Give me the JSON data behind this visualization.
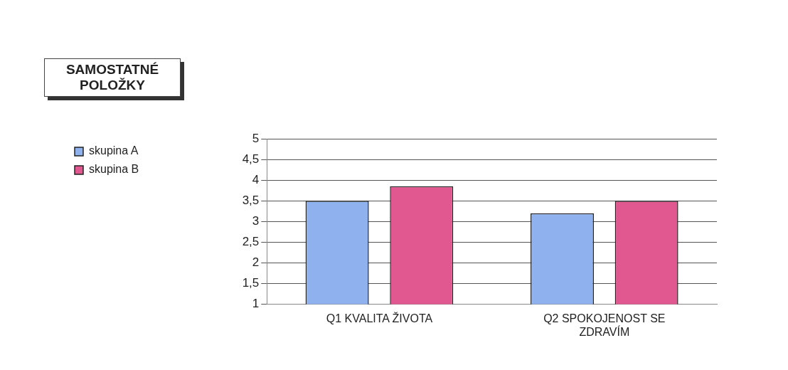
{
  "chart_data": {
    "type": "bar",
    "title": "SAMOSTATNÉ POLOŽKY",
    "categories": [
      "Q1 KVALITA ŽIVOTA",
      "Q2 SPOKOJENOST SE ZDRAVÍM"
    ],
    "series": [
      {
        "name": "skupina A",
        "color": "#8fb1ee",
        "values": [
          3.5,
          3.2
        ]
      },
      {
        "name": "skupina B",
        "color": "#e0588f",
        "values": [
          3.85,
          3.5
        ]
      }
    ],
    "ylim": [
      1,
      5
    ],
    "yticks": [
      1,
      {
        "value": 1.5,
        "label": "1,5"
      },
      2,
      {
        "value": 2.5,
        "label": "2,5"
      },
      3,
      {
        "value": 3.5,
        "label": "3,5"
      },
      4,
      {
        "value": 4.5,
        "label": "4,5"
      },
      5
    ],
    "grid": "y",
    "legend": "left"
  }
}
